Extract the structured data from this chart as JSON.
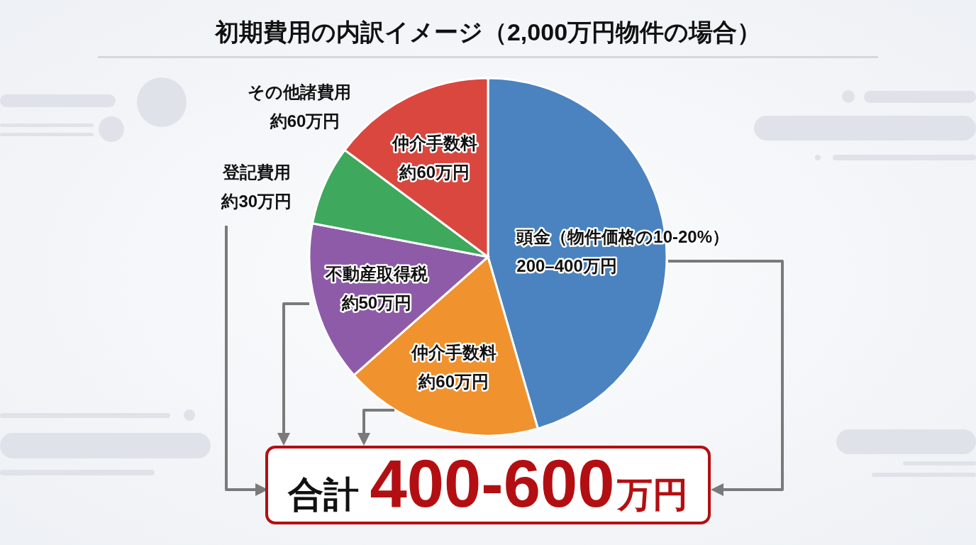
{
  "chart_data": {
    "type": "pie",
    "title": "初期費用の内訳イメージ（2,000万円物件の場合）",
    "categories": [
      "頭金（物件価格の10-20%）",
      "仲介手数料",
      "不動産取得税",
      "登記費用",
      "仲介手数料"
    ],
    "values": [
      45.5,
      18,
      14.5,
      7.2,
      14.8
    ],
    "colors": [
      "#4a83c0",
      "#f0922e",
      "#8e5ba8",
      "#3ea85c",
      "#d9473f"
    ],
    "value_labels": [
      "200–400万円",
      "約60万円",
      "約50万円",
      "約30万円",
      "約60万円"
    ],
    "annotations": [
      "その他諸費用",
      "約60万円",
      "合計400-600万円"
    ]
  }
}
